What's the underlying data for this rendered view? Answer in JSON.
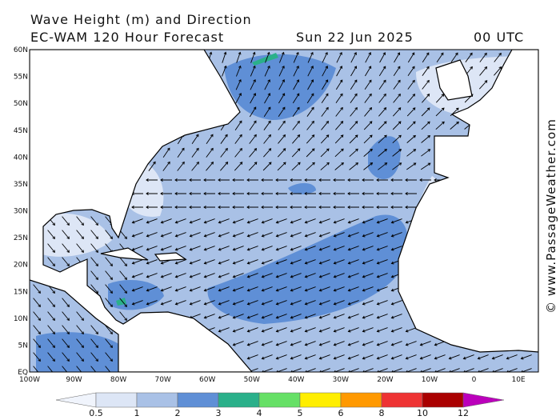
{
  "title": "Wave Height (m) and Direction",
  "subtitle": "EC-WAM 120 Hour Forecast",
  "date": "Sun 22 Jun 2025",
  "time": "00 UTC",
  "lat_labels": [
    "60N",
    "55N",
    "50N",
    "45N",
    "40N",
    "35N",
    "30N",
    "25N",
    "20N",
    "15N",
    "10N",
    "5N",
    "EQ"
  ],
  "lon_labels": [
    "100W",
    "90W",
    "80W",
    "70W",
    "60W",
    "50W",
    "40W",
    "30W",
    "20W",
    "10W",
    "0",
    "10E"
  ],
  "colorbar": {
    "colors": [
      "#f0f4fc",
      "#dde6f6",
      "#a9c1e6",
      "#5f8fd6",
      "#2ab08a",
      "#66e066",
      "#ffee00",
      "#ff9900",
      "#ee3333",
      "#aa0000",
      "#bb00bb"
    ],
    "labels": [
      "0.5",
      "1",
      "2",
      "3",
      "4",
      "5",
      "6",
      "8",
      "10",
      "12"
    ]
  },
  "credit": "© www.PassageWeather.com"
}
